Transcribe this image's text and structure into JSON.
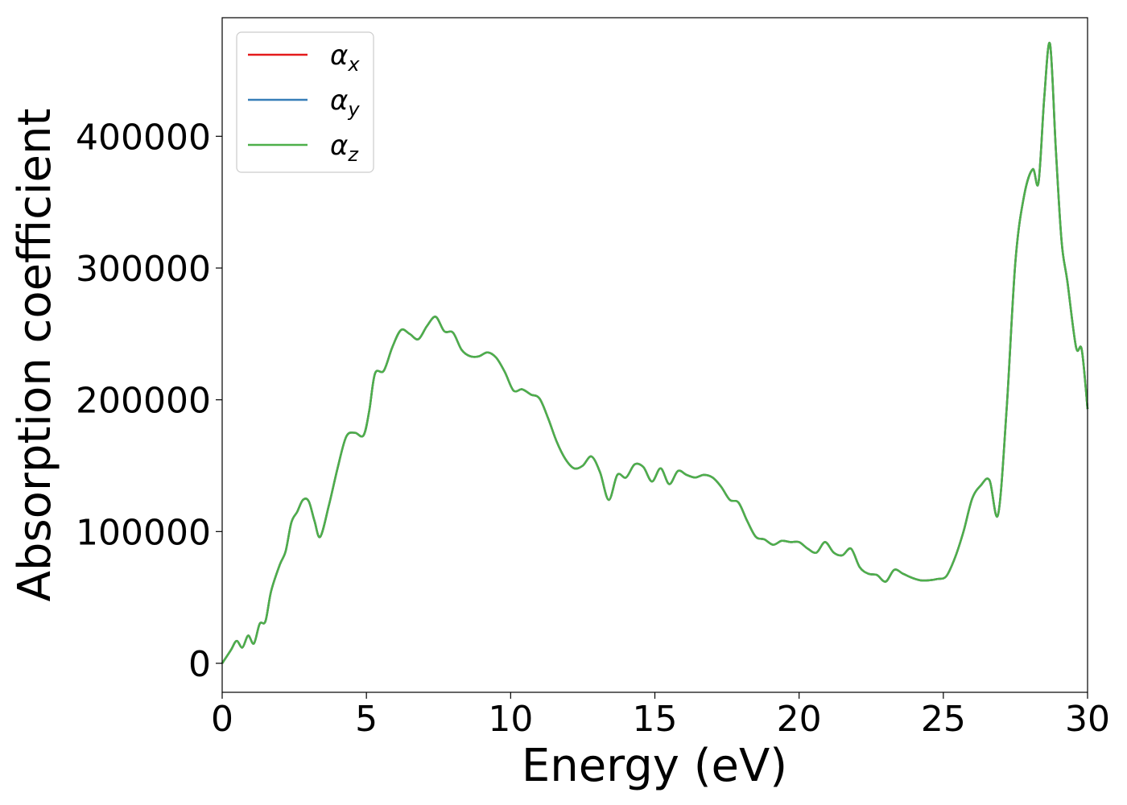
{
  "chart_data": {
    "type": "line",
    "xlabel": "Energy (eV)",
    "ylabel": "Absorption coefficient",
    "xlim": [
      0,
      30
    ],
    "ylim": [
      -22000,
      490000
    ],
    "xticks": [
      0,
      5,
      10,
      15,
      20,
      25,
      30
    ],
    "yticks": [
      0,
      100000,
      200000,
      300000,
      400000
    ],
    "xtick_labels": [
      "0",
      "5",
      "10",
      "15",
      "20",
      "25",
      "30"
    ],
    "ytick_labels": [
      "0",
      "100000",
      "200000",
      "300000",
      "400000"
    ],
    "grid": false,
    "legend_position": "top-left",
    "series": [
      {
        "name_base": "α",
        "name_sub": "x",
        "color": "#e41a1c"
      },
      {
        "name_base": "α",
        "name_sub": "y",
        "color": "#377eb8"
      },
      {
        "name_base": "α",
        "name_sub": "z",
        "color": "#4daf4a"
      }
    ],
    "x": [
      0,
      0.3,
      0.5,
      0.7,
      0.9,
      1.1,
      1.3,
      1.5,
      1.7,
      2.0,
      2.2,
      2.4,
      2.6,
      2.8,
      3.0,
      3.2,
      3.4,
      3.7,
      4.0,
      4.3,
      4.6,
      4.9,
      5.1,
      5.3,
      5.6,
      5.9,
      6.2,
      6.5,
      6.8,
      7.1,
      7.4,
      7.7,
      8.0,
      8.3,
      8.6,
      8.9,
      9.2,
      9.5,
      9.8,
      10.1,
      10.4,
      10.7,
      11.0,
      11.3,
      11.6,
      11.9,
      12.2,
      12.5,
      12.8,
      13.1,
      13.4,
      13.7,
      14.0,
      14.3,
      14.6,
      14.9,
      15.2,
      15.5,
      15.8,
      16.1,
      16.4,
      16.7,
      17.0,
      17.3,
      17.6,
      17.9,
      18.2,
      18.5,
      18.8,
      19.1,
      19.4,
      19.7,
      20.0,
      20.3,
      20.6,
      20.9,
      21.2,
      21.5,
      21.8,
      22.1,
      22.4,
      22.7,
      23.0,
      23.3,
      23.6,
      23.9,
      24.2,
      24.5,
      24.8,
      25.1,
      25.4,
      25.7,
      26.0,
      26.3,
      26.6,
      26.9,
      27.2,
      27.5,
      27.8,
      28.1,
      28.3,
      28.5,
      28.7,
      28.9,
      29.1,
      29.3,
      29.6,
      29.8,
      30.0
    ],
    "y": [
      0,
      10000,
      17000,
      12000,
      21000,
      15000,
      30000,
      32000,
      55000,
      75000,
      85000,
      107000,
      115000,
      124000,
      123000,
      108000,
      96000,
      120000,
      148000,
      172000,
      175000,
      173000,
      192000,
      220000,
      222000,
      240000,
      253000,
      250000,
      246000,
      256000,
      263000,
      252000,
      251000,
      238000,
      233000,
      233000,
      236000,
      232000,
      221000,
      207000,
      208000,
      204000,
      201000,
      186000,
      168000,
      155000,
      148000,
      150000,
      157000,
      145000,
      124000,
      143000,
      141000,
      151000,
      149000,
      138000,
      148000,
      136000,
      146000,
      143000,
      141000,
      143000,
      141000,
      134000,
      124000,
      122000,
      108000,
      96000,
      94000,
      90000,
      93000,
      92000,
      92000,
      87000,
      84000,
      92000,
      84000,
      82000,
      87000,
      73000,
      68000,
      67000,
      62000,
      71000,
      68000,
      65000,
      63000,
      63000,
      64000,
      66000,
      80000,
      100000,
      125000,
      135000,
      139000,
      113000,
      195000,
      305000,
      355000,
      375000,
      365000,
      430000,
      470000,
      390000,
      320000,
      290000,
      240000,
      238000,
      193000
    ]
  }
}
